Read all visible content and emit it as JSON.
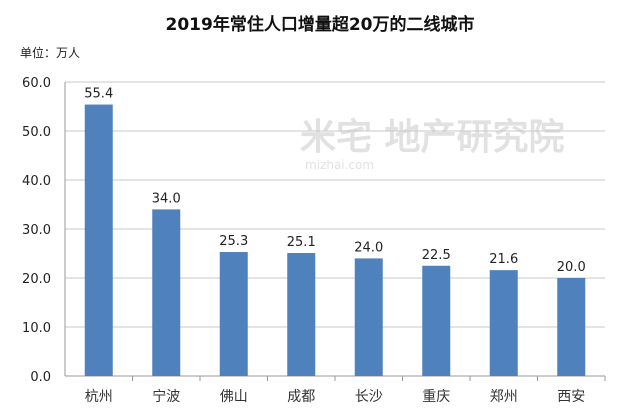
{
  "chart_data": {
    "type": "bar",
    "title": "2019年常住人口增量超20万的二线城市",
    "unit_label": "单位：万人",
    "xlabel": "",
    "ylabel": "",
    "ylim": [
      0,
      60
    ],
    "yticks": [
      "0.0",
      "10.0",
      "20.0",
      "30.0",
      "40.0",
      "50.0",
      "60.0"
    ],
    "categories": [
      "杭州",
      "宁波",
      "佛山",
      "成都",
      "长沙",
      "重庆",
      "郑州",
      "西安"
    ],
    "values": [
      55.4,
      34.0,
      25.3,
      25.1,
      24.0,
      22.5,
      21.6,
      20.0
    ],
    "data_labels": [
      "55.4",
      "34.0",
      "25.3",
      "25.1",
      "24.0",
      "22.5",
      "21.6",
      "20.0"
    ],
    "grid": true,
    "bar_color": "#4f81bd",
    "watermark": "米宅 地产研究院",
    "watermark_url": "mizhai.com"
  }
}
